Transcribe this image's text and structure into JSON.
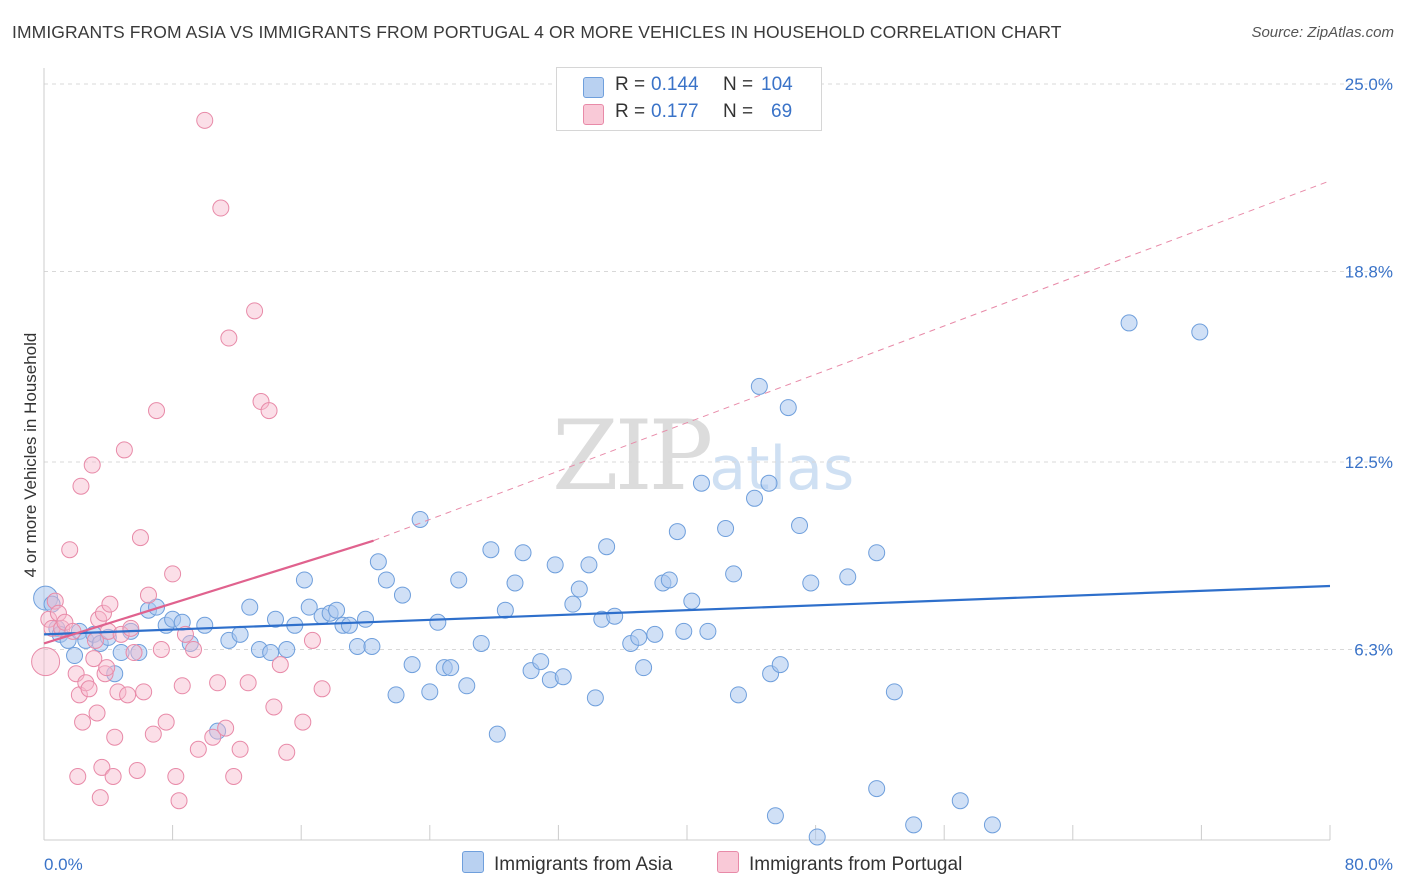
{
  "header": {
    "title": "IMMIGRANTS FROM ASIA VS IMMIGRANTS FROM PORTUGAL 4 OR MORE VEHICLES IN HOUSEHOLD CORRELATION CHART",
    "source": "Source: ZipAtlas.com"
  },
  "watermark": {
    "zip": "ZIP",
    "atlas": "atlas"
  },
  "legend": {
    "r_label": "R =",
    "n_label": "N =",
    "series": [
      {
        "r": "0.144",
        "n": "104"
      },
      {
        "r": "0.177",
        "n": "69"
      }
    ]
  },
  "bottom_legend": {
    "asia": "Immigrants from Asia",
    "portugal": "Immigrants from Portugal"
  },
  "colors": {
    "asia_fill": "#a9c7ef",
    "asia_stroke": "#6f9fdc",
    "asia_line": "#2e6fcb",
    "portugal_fill": "#f6b8cb",
    "portugal_stroke": "#e88aa8",
    "portugal_line": "#e0628e",
    "tick_text": "#3a73c8"
  },
  "chart_data": {
    "type": "scatter",
    "title": "IMMIGRANTS FROM ASIA VS IMMIGRANTS FROM PORTUGAL 4 OR MORE VEHICLES IN HOUSEHOLD CORRELATION CHART",
    "xlabel": "",
    "ylabel": "4 or more Vehicles in Household",
    "xlim": [
      0,
      80
    ],
    "ylim": [
      0,
      25.2
    ],
    "x_tick_labels": [
      "0.0%",
      "80.0%"
    ],
    "y_ticks": [
      6.3,
      12.5,
      18.8,
      25.0
    ],
    "y_tick_labels": [
      "6.3%",
      "12.5%",
      "18.8%",
      "25.0%"
    ],
    "grid": true,
    "legend_position": "top-center",
    "series": [
      {
        "name": "Immigrants from Asia",
        "trend": {
          "x": [
            0,
            80
          ],
          "y": [
            6.8,
            8.4
          ]
        },
        "points": [
          [
            0.1,
            8.0
          ],
          [
            0.5,
            7.8
          ],
          [
            0.8,
            7.0
          ],
          [
            1.0,
            6.8
          ],
          [
            1.5,
            6.6
          ],
          [
            1.9,
            6.1
          ],
          [
            2.2,
            6.9
          ],
          [
            2.6,
            6.6
          ],
          [
            3.1,
            6.8
          ],
          [
            3.5,
            6.5
          ],
          [
            4.0,
            6.7
          ],
          [
            4.4,
            5.5
          ],
          [
            4.8,
            6.2
          ],
          [
            5.4,
            6.9
          ],
          [
            5.9,
            6.2
          ],
          [
            6.5,
            7.6
          ],
          [
            7.0,
            7.7
          ],
          [
            7.6,
            7.1
          ],
          [
            8.0,
            7.3
          ],
          [
            8.6,
            7.2
          ],
          [
            9.1,
            6.5
          ],
          [
            10.0,
            7.1
          ],
          [
            10.8,
            3.6
          ],
          [
            11.5,
            6.6
          ],
          [
            12.2,
            6.8
          ],
          [
            12.8,
            7.7
          ],
          [
            13.4,
            6.3
          ],
          [
            14.1,
            6.2
          ],
          [
            14.4,
            7.3
          ],
          [
            15.1,
            6.3
          ],
          [
            15.6,
            7.1
          ],
          [
            16.2,
            8.6
          ],
          [
            16.5,
            7.7
          ],
          [
            17.3,
            7.4
          ],
          [
            17.8,
            7.5
          ],
          [
            18.2,
            7.6
          ],
          [
            18.6,
            7.1
          ],
          [
            19.0,
            7.1
          ],
          [
            19.5,
            6.4
          ],
          [
            20.0,
            7.3
          ],
          [
            20.4,
            6.4
          ],
          [
            20.8,
            9.2
          ],
          [
            21.3,
            8.6
          ],
          [
            21.9,
            4.8
          ],
          [
            22.3,
            8.1
          ],
          [
            22.9,
            5.8
          ],
          [
            23.4,
            10.6
          ],
          [
            24.0,
            4.9
          ],
          [
            24.5,
            7.2
          ],
          [
            24.9,
            5.7
          ],
          [
            25.3,
            5.7
          ],
          [
            25.8,
            8.6
          ],
          [
            26.3,
            5.1
          ],
          [
            27.2,
            6.5
          ],
          [
            27.8,
            9.6
          ],
          [
            28.2,
            3.5
          ],
          [
            28.7,
            7.6
          ],
          [
            29.3,
            8.5
          ],
          [
            29.8,
            9.5
          ],
          [
            30.3,
            5.6
          ],
          [
            30.9,
            5.9
          ],
          [
            31.5,
            5.3
          ],
          [
            31.8,
            9.1
          ],
          [
            32.3,
            5.4
          ],
          [
            32.9,
            7.8
          ],
          [
            33.3,
            8.3
          ],
          [
            33.9,
            9.1
          ],
          [
            34.3,
            4.7
          ],
          [
            34.7,
            7.3
          ],
          [
            35.0,
            9.7
          ],
          [
            35.5,
            7.4
          ],
          [
            36.5,
            6.5
          ],
          [
            37.0,
            6.7
          ],
          [
            37.3,
            5.7
          ],
          [
            38.0,
            6.8
          ],
          [
            38.5,
            8.5
          ],
          [
            38.9,
            8.6
          ],
          [
            39.4,
            10.2
          ],
          [
            39.8,
            6.9
          ],
          [
            40.3,
            7.9
          ],
          [
            40.9,
            11.8
          ],
          [
            41.3,
            6.9
          ],
          [
            42.4,
            10.3
          ],
          [
            42.9,
            8.8
          ],
          [
            43.2,
            4.8
          ],
          [
            44.2,
            11.3
          ],
          [
            44.5,
            15.0
          ],
          [
            45.1,
            11.8
          ],
          [
            45.2,
            5.5
          ],
          [
            45.5,
            0.8
          ],
          [
            45.8,
            5.8
          ],
          [
            46.3,
            14.3
          ],
          [
            47.0,
            10.4
          ],
          [
            47.7,
            8.5
          ],
          [
            48.1,
            0.1
          ],
          [
            50.0,
            8.7
          ],
          [
            51.8,
            1.7
          ],
          [
            51.8,
            9.5
          ],
          [
            52.9,
            4.9
          ],
          [
            54.1,
            0.5
          ],
          [
            57.0,
            1.3
          ],
          [
            59.0,
            0.5
          ],
          [
            67.5,
            17.1
          ],
          [
            71.9,
            16.8
          ]
        ]
      },
      {
        "name": "Immigrants from Portugal",
        "trend": {
          "x": [
            0,
            20.5
          ],
          "y": [
            6.5,
            9.9
          ]
        },
        "trend_ext": {
          "x": [
            20.5,
            80
          ],
          "y": [
            9.9,
            21.8
          ]
        },
        "points": [
          [
            0.1,
            5.9
          ],
          [
            0.3,
            7.3
          ],
          [
            0.5,
            7.0
          ],
          [
            0.7,
            7.9
          ],
          [
            0.9,
            7.5
          ],
          [
            1.1,
            7.0
          ],
          [
            1.3,
            7.2
          ],
          [
            1.6,
            9.6
          ],
          [
            1.8,
            6.9
          ],
          [
            2.0,
            5.5
          ],
          [
            2.1,
            2.1
          ],
          [
            2.2,
            4.8
          ],
          [
            2.3,
            11.7
          ],
          [
            2.4,
            3.9
          ],
          [
            2.6,
            5.2
          ],
          [
            2.8,
            5.0
          ],
          [
            3.0,
            12.4
          ],
          [
            3.1,
            6.0
          ],
          [
            3.2,
            6.6
          ],
          [
            3.3,
            4.2
          ],
          [
            3.4,
            7.3
          ],
          [
            3.5,
            1.4
          ],
          [
            3.6,
            2.4
          ],
          [
            3.7,
            7.5
          ],
          [
            3.8,
            5.5
          ],
          [
            3.9,
            5.7
          ],
          [
            4.0,
            6.9
          ],
          [
            4.1,
            7.8
          ],
          [
            4.3,
            2.1
          ],
          [
            4.4,
            3.4
          ],
          [
            4.6,
            4.9
          ],
          [
            4.8,
            6.8
          ],
          [
            5.0,
            12.9
          ],
          [
            5.2,
            4.8
          ],
          [
            5.4,
            7.0
          ],
          [
            5.6,
            6.2
          ],
          [
            5.8,
            2.3
          ],
          [
            6.0,
            10.0
          ],
          [
            6.2,
            4.9
          ],
          [
            6.5,
            8.1
          ],
          [
            6.8,
            3.5
          ],
          [
            7.0,
            14.2
          ],
          [
            7.3,
            6.3
          ],
          [
            7.6,
            3.9
          ],
          [
            8.0,
            8.8
          ],
          [
            8.2,
            2.1
          ],
          [
            8.4,
            1.3
          ],
          [
            8.6,
            5.1
          ],
          [
            8.8,
            6.8
          ],
          [
            9.3,
            6.3
          ],
          [
            9.6,
            3.0
          ],
          [
            10.0,
            23.8
          ],
          [
            10.5,
            3.4
          ],
          [
            10.8,
            5.2
          ],
          [
            11.0,
            20.9
          ],
          [
            11.3,
            3.7
          ],
          [
            11.5,
            16.6
          ],
          [
            11.8,
            2.1
          ],
          [
            12.2,
            3.0
          ],
          [
            12.7,
            5.2
          ],
          [
            13.1,
            17.5
          ],
          [
            13.5,
            14.5
          ],
          [
            14.0,
            14.2
          ],
          [
            14.3,
            4.4
          ],
          [
            14.7,
            5.8
          ],
          [
            15.1,
            2.9
          ],
          [
            16.1,
            3.9
          ],
          [
            16.7,
            6.6
          ],
          [
            17.3,
            5.0
          ]
        ]
      }
    ]
  }
}
